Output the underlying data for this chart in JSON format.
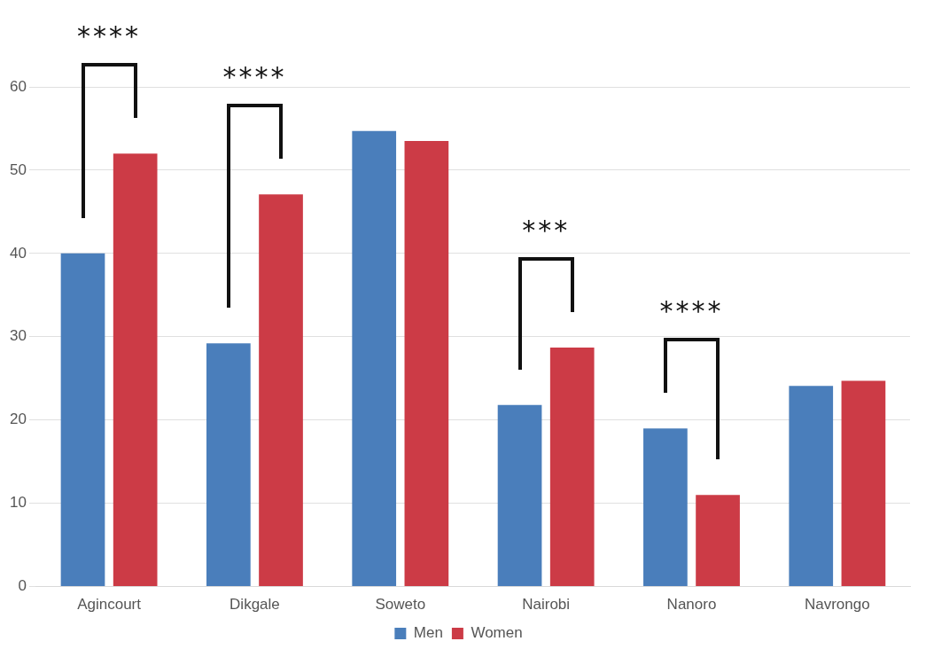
{
  "chart_data": {
    "type": "bar",
    "categories": [
      "Agincourt",
      "Dikgale",
      "Soweto",
      "Nairobi",
      "Nanoro",
      "Navrongo"
    ],
    "series": [
      {
        "name": "Men",
        "color": "#4a7ebb",
        "values": [
          40,
          29.2,
          54.7,
          21.8,
          19,
          24.1
        ]
      },
      {
        "name": "Women",
        "color": "#cc3b46",
        "values": [
          52,
          47.1,
          53.5,
          28.7,
          11,
          24.7
        ]
      }
    ],
    "ylim": [
      0,
      60
    ],
    "yticks": [
      0,
      10,
      20,
      30,
      40,
      50,
      60
    ],
    "grid": "y",
    "legend": "bottom",
    "annotations": [
      "****",
      "****",
      "***",
      "****"
    ]
  }
}
